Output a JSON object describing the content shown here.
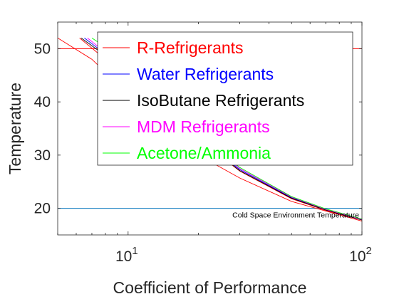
{
  "chart_data": {
    "type": "line",
    "title": "",
    "xlabel": "Coefficient of Performance",
    "ylabel": "Temperature",
    "xscale": "log",
    "xlim": [
      5,
      100
    ],
    "ylim": [
      15,
      55
    ],
    "x_ticks": [
      {
        "base": "10",
        "exp": "1",
        "value": 10
      },
      {
        "base": "10",
        "exp": "2",
        "value": 100
      }
    ],
    "y_ticks": [
      20,
      30,
      40,
      50
    ],
    "grid": false,
    "legend_position": "top-right",
    "colors": {
      "r": "#ff0000",
      "water": "#0000ff",
      "isobutane": "#000000",
      "mdm": "#ff00ff",
      "acetone": "#00ff00",
      "reference": "#0072bd",
      "axis": "#262626"
    },
    "series": [
      {
        "name": "R-Refrigerants",
        "color": "#ff0000",
        "curves": [
          [
            [
              5.0,
              52
            ],
            [
              7,
              48
            ],
            [
              10,
              41.5
            ],
            [
              15,
              34
            ],
            [
              20,
              30
            ],
            [
              30,
              25.7
            ],
            [
              50,
              21.3
            ],
            [
              70,
              19.5
            ],
            [
              100,
              17.6
            ]
          ],
          [
            [
              6.2,
              52
            ],
            [
              8,
              48
            ],
            [
              10,
              45
            ],
            [
              15,
              38
            ],
            [
              20,
              33
            ],
            [
              30,
              27
            ],
            [
              50,
              21.8
            ],
            [
              70,
              19.6
            ],
            [
              100,
              17.8
            ]
          ]
        ]
      },
      {
        "name": "Water Refrigerants",
        "color": "#0000ff",
        "curves": [
          [
            [
              6.5,
              52
            ],
            [
              8,
              49
            ],
            [
              10,
              45.5
            ],
            [
              15,
              38.3
            ],
            [
              20,
              33.3
            ],
            [
              30,
              27.3
            ],
            [
              50,
              22
            ],
            [
              70,
              19.8
            ],
            [
              100,
              17.9
            ]
          ]
        ]
      },
      {
        "name": "IsoButane Refrigerants",
        "color": "#000000",
        "curves": [
          [
            [
              6.3,
              52
            ],
            [
              8,
              48.7
            ],
            [
              10,
              45.2
            ],
            [
              15,
              38.1
            ],
            [
              20,
              33.1
            ],
            [
              30,
              27.1
            ],
            [
              50,
              21.9
            ],
            [
              70,
              19.7
            ],
            [
              100,
              17.8
            ]
          ]
        ]
      },
      {
        "name": "MDM Refrigerants",
        "color": "#ff00ff",
        "curves": [
          [
            [
              6.7,
              52
            ],
            [
              8,
              49.3
            ],
            [
              10,
              45.8
            ],
            [
              15,
              38.6
            ],
            [
              20,
              33.5
            ],
            [
              30,
              27.5
            ],
            [
              50,
              22.1
            ],
            [
              70,
              19.8
            ],
            [
              100,
              17.9
            ]
          ]
        ]
      },
      {
        "name": "Acetone/Ammonia",
        "color": "#00ff00",
        "curves": [
          [
            [
              7.0,
              52
            ],
            [
              8.5,
              49.5
            ],
            [
              10,
              46.2
            ],
            [
              15,
              39
            ],
            [
              20,
              33.8
            ],
            [
              30,
              27.7
            ],
            [
              50,
              22.2
            ],
            [
              70,
              19.9
            ],
            [
              100,
              18.0
            ]
          ]
        ]
      }
    ],
    "reference_lines": [
      {
        "y": 50,
        "color": "#ff0000",
        "label": ""
      },
      {
        "y": 20,
        "color": "#0072bd",
        "label": "Cold Space Environment Temperature"
      }
    ]
  }
}
